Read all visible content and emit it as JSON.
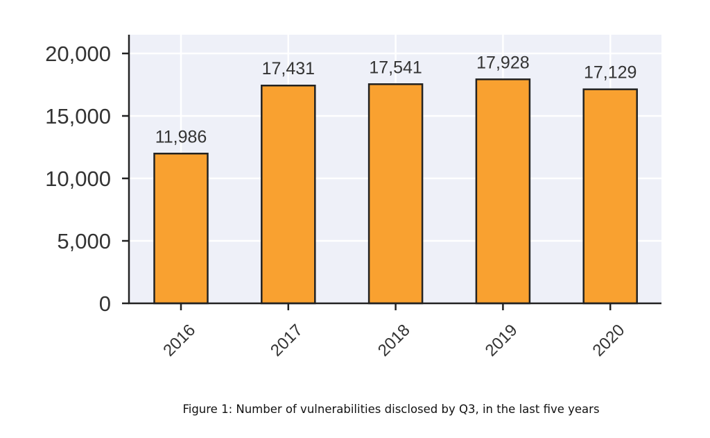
{
  "caption": "Figure 1: Number of vulnerabilities disclosed by Q3, in the last five years",
  "chart_data": {
    "type": "bar",
    "categories": [
      "2016",
      "2017",
      "2018",
      "2019",
      "2020"
    ],
    "values": [
      11986,
      17431,
      17541,
      17928,
      17129
    ],
    "value_labels": [
      "11,986",
      "17,431",
      "17,541",
      "17,928",
      "17,129"
    ],
    "y_ticks": [
      0,
      5000,
      10000,
      15000,
      20000
    ],
    "y_tick_labels": [
      "0",
      "5,000",
      "10,000",
      "15,000",
      "20,000"
    ],
    "ylim": [
      0,
      21500
    ],
    "title": "",
    "xlabel": "",
    "ylabel": "",
    "grid": true,
    "x_tick_rotation_deg": -45,
    "colors": {
      "bar_fill": "#f9a130",
      "bar_edge": "#222222",
      "plot_background": "#eef0f8",
      "grid": "#ffffff",
      "axis": "#222222"
    }
  }
}
